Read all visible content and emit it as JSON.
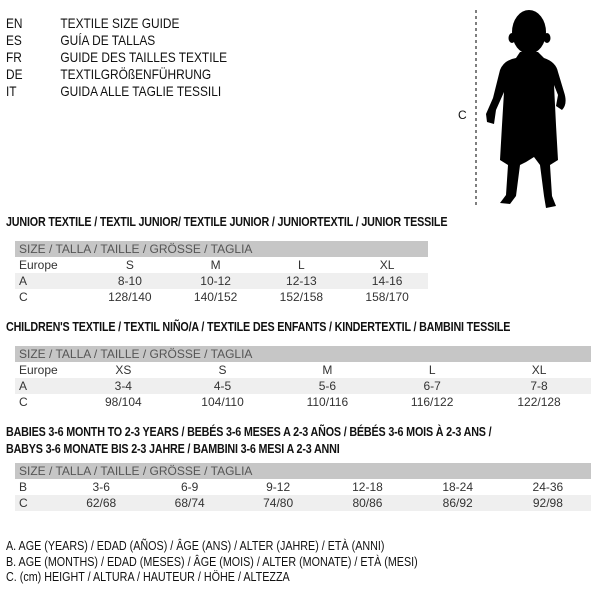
{
  "languages": [
    {
      "code": "EN",
      "name": "TEXTILE SIZE GUIDE"
    },
    {
      "code": "ES",
      "name": "GUÍA DE TALLAS"
    },
    {
      "code": "FR",
      "name": "GUIDE DES TAILLES TEXTILE"
    },
    {
      "code": "DE",
      "name": "TEXTILGRÖßENFÜHRUNG"
    },
    {
      "code": "IT",
      "name": "GUIDA ALLE TAGLIE TESSILI"
    }
  ],
  "figure": {
    "measure_label": "C",
    "icon": "child-silhouette-icon"
  },
  "junior": {
    "title": "JUNIOR TEXTILE / TEXTIL JUNIOR/ TEXTILE JUNIOR / JUNIORTEXTIL / JUNIOR TESSILE",
    "header": "SIZE / TALLA / TAILLE / GRÖSSE / TAGLIA",
    "rows": [
      [
        "Europe",
        "S",
        "M",
        "L",
        "XL"
      ],
      [
        "A",
        "8-10",
        "10-12",
        "12-13",
        "14-16"
      ],
      [
        "C",
        "128/140",
        "140/152",
        "152/158",
        "158/170"
      ]
    ]
  },
  "children": {
    "title": "CHILDREN'S TEXTILE / TEXTIL NIÑO/A / TEXTILE DES ENFANTS / KINDERTEXTIL / BAMBINI TESSILE",
    "header": "SIZE / TALLA / TAILLE / GRÖSSE / TAGLIA",
    "rows": [
      [
        "Europe",
        "XS",
        "S",
        "M",
        "L",
        "XL"
      ],
      [
        "A",
        "3-4",
        "4-5",
        "5-6",
        "6-7",
        "7-8"
      ],
      [
        "C",
        "98/104",
        "104/110",
        "110/116",
        "116/122",
        "122/128"
      ]
    ]
  },
  "babies": {
    "title_line1": "BABIES 3-6 MONTH TO 2-3 YEARS / BEBÉS 3-6 MESES A 2-3 AÑOS / BÉBÉS 3-6 MOIS À 2-3 ANS /",
    "title_line2": "BABYS 3-6 MONATE BIS 2-3 JAHRE / BAMBINI 3-6 MESI A 2-3 ANNI",
    "header": "SIZE / TALLA / TAILLE / GRÖSSE / TAGLIA",
    "rows": [
      [
        "B",
        "3-6",
        "6-9",
        "9-12",
        "12-18",
        "18-24",
        "24-36"
      ],
      [
        "C",
        "62/68",
        "68/74",
        "74/80",
        "80/86",
        "86/92",
        "92/98"
      ]
    ]
  },
  "legend": [
    "A. AGE (YEARS) / EDAD (AÑOS) / ÂGE (ANS) / ALTER (JAHRE) / ETÀ (ANNI)",
    "B. AGE (MONTHS) / EDAD (MESES) / ÂGE (MOIS) / ALTER (MONATE) / ETÀ (MESI)",
    "C. (cm) HEIGHT / ALTURA / HAUTEUR / HÖHE / ALTEZZA"
  ]
}
